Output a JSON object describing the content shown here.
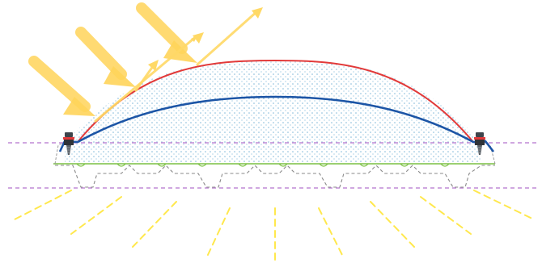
{
  "diagram": {
    "description": "",
    "colors": {
      "sun_ray": "#ffd45a",
      "reflected_ray": "#ffd966",
      "red_arc": "#e23a3a",
      "blue_arc": "#1c55a6",
      "dots": "#7fb7d8",
      "dashed_guide": "#b98ad0",
      "roof_line": "#6bbf3a",
      "corrugation": "#8a8a8a",
      "light_dashes": "#ffe84d",
      "fastener": "#4a4f55",
      "washer": "#e83d3d"
    },
    "icons": {
      "left_fastener": "screw-icon",
      "right_fastener": "screw-icon"
    }
  }
}
